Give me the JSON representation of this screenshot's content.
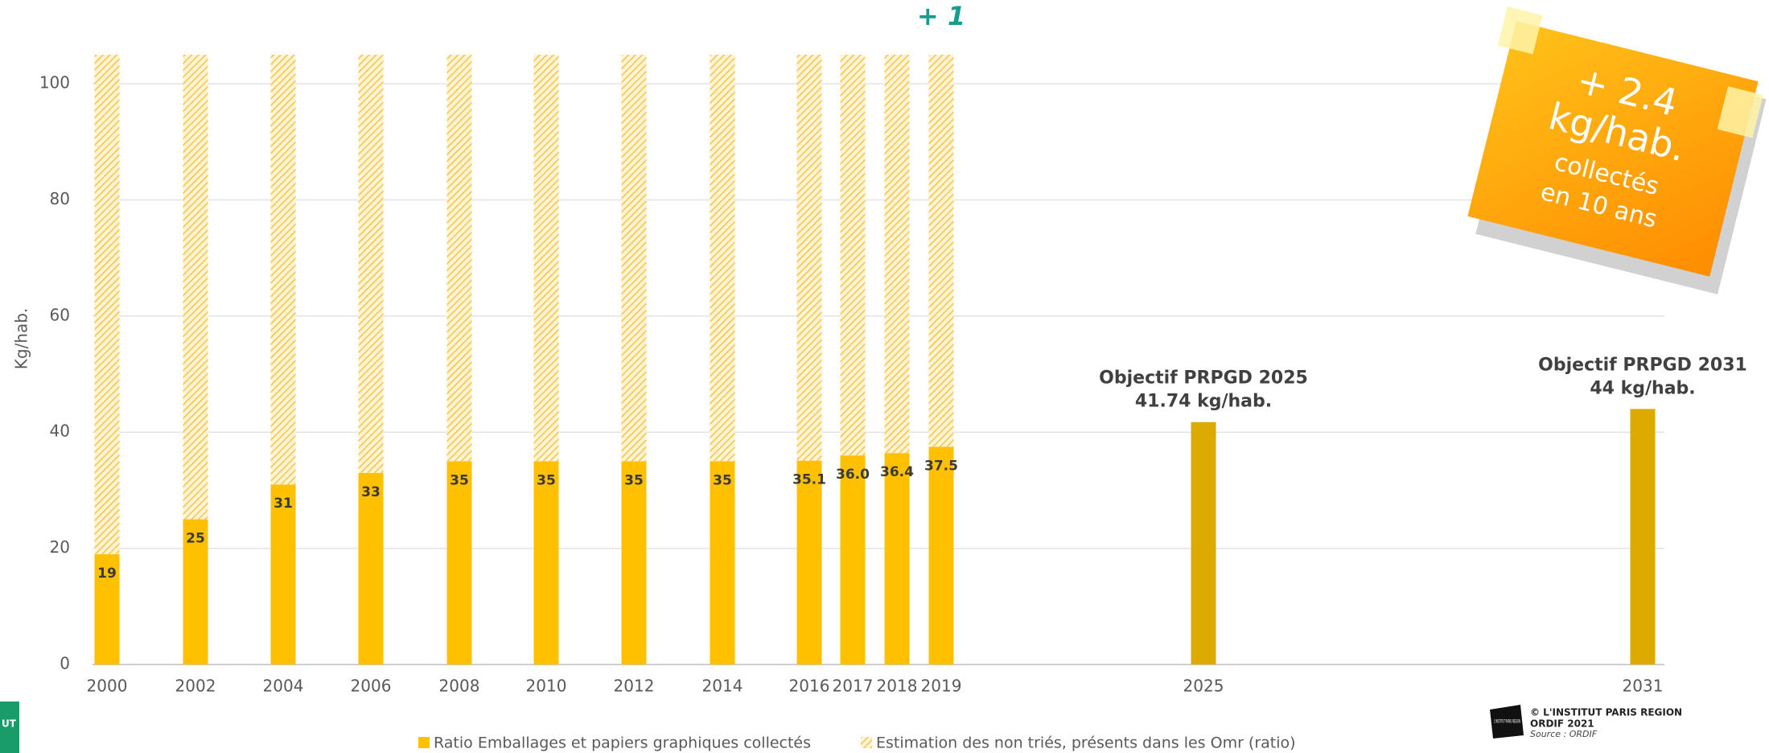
{
  "chart_data": {
    "type": "bar",
    "stacked": true,
    "ylabel": "Kg/hab.",
    "categories": [
      "2000",
      "2002",
      "2004",
      "2006",
      "2008",
      "2010",
      "2012",
      "2014",
      "2016",
      "2017",
      "2018",
      "2019",
      "2025",
      "2031"
    ],
    "series": [
      {
        "name": "Ratio Emballages et papiers graphiques collectés",
        "color": "#ffc000",
        "values": [
          19,
          25,
          31,
          33,
          35,
          35,
          35,
          35,
          35.1,
          36.0,
          36.4,
          37.5,
          null,
          null
        ],
        "value_labels": [
          "19",
          "25",
          "31",
          "33",
          "35",
          "35",
          "35",
          "35",
          "35.1",
          "36.0",
          "36.4",
          "37.5",
          null,
          null
        ]
      },
      {
        "name": "Estimation des non triés, présents dans les Omr (ratio)",
        "color": "#f7c64a",
        "hatch": true,
        "values": [
          86,
          80,
          74,
          72,
          70,
          70,
          70,
          70,
          69.9,
          69.0,
          68.6,
          67.5,
          null,
          null
        ]
      },
      {
        "color": "#dcaa00",
        "values": [
          null,
          null,
          null,
          null,
          null,
          null,
          null,
          null,
          null,
          null,
          null,
          null,
          41.74,
          44
        ],
        "value_labels": [
          null,
          null,
          null,
          null,
          null,
          null,
          null,
          null,
          null,
          null,
          null,
          null,
          [
            "Objectif PRPGD 2025",
            "41.74 kg/hab."
          ],
          [
            "Objectif PRPGD 2031",
            "44 kg/hab."
          ]
        ]
      }
    ],
    "annotations": [
      {
        "text": "+ 1",
        "color": "#1a9c8a"
      }
    ],
    "ylim": [
      0,
      105
    ],
    "yticks": [
      0,
      20,
      40,
      60,
      80,
      100
    ],
    "grid": true
  },
  "note": {
    "lines": [
      "+ 2.4",
      "kg/hab.",
      "collectés",
      "en 10 ans"
    ]
  },
  "footer": {
    "logo": "L'INSTITUT PARIS REGION",
    "lines": [
      "© L'INSTITUT PARIS REGION",
      "ORDIF 2021",
      "Source : ORDIF"
    ],
    "left_logo": "UT"
  }
}
